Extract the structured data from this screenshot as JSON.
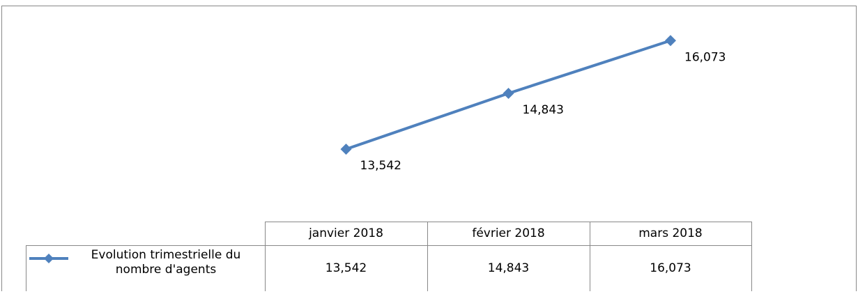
{
  "chart_data": {
    "type": "line",
    "categories": [
      "janvier 2018",
      "février 2018",
      "mars 2018"
    ],
    "series": [
      {
        "name": "Evolution trimestrielle du nombre d'agents",
        "color": "#4f81bd",
        "values": [
          13542,
          14843,
          16073
        ],
        "value_labels": [
          "13,542",
          "14,843",
          "16,073"
        ]
      }
    ],
    "ylim": [
      12000,
      16500
    ]
  }
}
